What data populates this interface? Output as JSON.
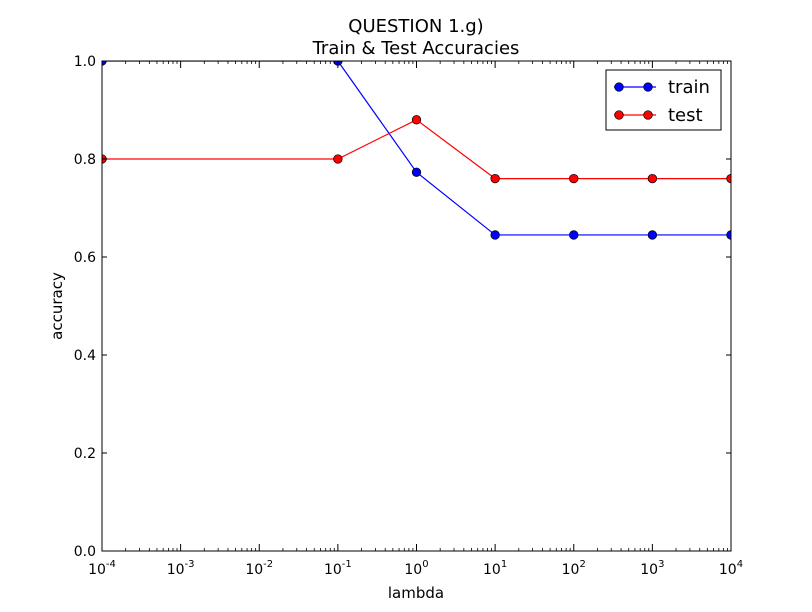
{
  "chart_data": {
    "type": "line",
    "title": [
      "QUESTION 1.g)",
      "Train & Test Accuracies"
    ],
    "xlabel": "lambda",
    "ylabel": "accuracy",
    "x_scale": "log",
    "xlim": [
      0.0001,
      10000
    ],
    "ylim": [
      0.0,
      1.0
    ],
    "x_ticks": [
      {
        "value": 0.0001,
        "base": "10",
        "exp": "-4"
      },
      {
        "value": 0.001,
        "base": "10",
        "exp": "-3"
      },
      {
        "value": 0.01,
        "base": "10",
        "exp": "-2"
      },
      {
        "value": 0.1,
        "base": "10",
        "exp": "-1"
      },
      {
        "value": 1,
        "base": "10",
        "exp": "0"
      },
      {
        "value": 10,
        "base": "10",
        "exp": "1"
      },
      {
        "value": 100,
        "base": "10",
        "exp": "2"
      },
      {
        "value": 1000,
        "base": "10",
        "exp": "3"
      },
      {
        "value": 10000,
        "base": "10",
        "exp": "4"
      }
    ],
    "y_ticks": [
      {
        "value": 0.0,
        "label": "0.0"
      },
      {
        "value": 0.2,
        "label": "0.2"
      },
      {
        "value": 0.4,
        "label": "0.4"
      },
      {
        "value": 0.6,
        "label": "0.6"
      },
      {
        "value": 0.8,
        "label": "0.8"
      },
      {
        "value": 1.0,
        "label": "1.0"
      }
    ],
    "grid": false,
    "legend_position": "top-right",
    "x": [
      0.0001,
      0.1,
      1,
      10,
      100,
      1000,
      10000
    ],
    "series": [
      {
        "name": "train",
        "color": "#0000ff",
        "values": [
          1.0,
          1.0,
          0.773,
          0.645,
          0.645,
          0.645,
          0.645
        ]
      },
      {
        "name": "test",
        "color": "#ff0000",
        "values": [
          0.8,
          0.8,
          0.88,
          0.76,
          0.76,
          0.76,
          0.76
        ]
      }
    ]
  }
}
